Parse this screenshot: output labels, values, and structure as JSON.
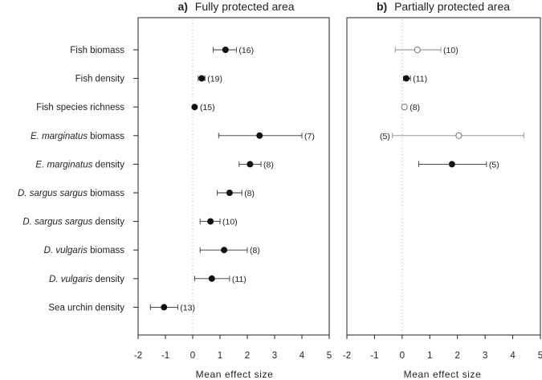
{
  "chart_data": [
    {
      "type": "scatter",
      "panel_letter": "a)",
      "title": "Fully protected area",
      "xlabel": "Mean effect size",
      "xlim": [
        -2,
        5
      ],
      "xticks": [
        "-2",
        "-1",
        "0",
        "1",
        "2",
        "3",
        "4",
        "5"
      ],
      "zero_reference_line": "dotted",
      "marker_fill": "#111111",
      "categories": [
        [
          "Fish biomass"
        ],
        [
          "Fish density"
        ],
        [
          "Fish species richness"
        ],
        [
          "E. marginatus",
          " biomass"
        ],
        [
          "E. marginatus",
          " density"
        ],
        [
          "D. sargus sargus",
          " biomass"
        ],
        [
          "D. sargus sargus",
          " density"
        ],
        [
          "D. vulgaris",
          " biomass"
        ],
        [
          "D. vulgaris",
          " density"
        ],
        [
          "Sea urchin density"
        ]
      ],
      "points": [
        {
          "x": 1.2,
          "lo": 0.75,
          "hi": 1.6,
          "n": "(16)"
        },
        {
          "x": 0.33,
          "lo": 0.2,
          "hi": 0.45,
          "n": "(19)"
        },
        {
          "x": 0.07,
          "lo": 0.07,
          "hi": 0.07,
          "n": "(15)"
        },
        {
          "x": 2.45,
          "lo": 0.95,
          "hi": 4.0,
          "n": "(7)"
        },
        {
          "x": 2.1,
          "lo": 1.7,
          "hi": 2.5,
          "n": "(8)"
        },
        {
          "x": 1.35,
          "lo": 0.9,
          "hi": 1.8,
          "n": "(8)"
        },
        {
          "x": 0.65,
          "lo": 0.27,
          "hi": 1.0,
          "n": "(10)"
        },
        {
          "x": 1.15,
          "lo": 0.27,
          "hi": 2.0,
          "n": "(8)"
        },
        {
          "x": 0.7,
          "lo": 0.07,
          "hi": 1.35,
          "n": "(11)"
        },
        {
          "x": -1.05,
          "lo": -1.55,
          "hi": -0.55,
          "n": "(13)"
        }
      ]
    },
    {
      "type": "scatter",
      "panel_letter": "b)",
      "title": "Partially protected area",
      "xlabel": "Mean effect size",
      "xlim": [
        -2,
        5
      ],
      "xticks": [
        "-2",
        "-1",
        "0",
        "1",
        "2",
        "3",
        "4",
        "5"
      ],
      "zero_reference_line": "dotted",
      "points": [
        {
          "row": 0,
          "x": 0.55,
          "lo": -0.25,
          "hi": 1.4,
          "n": "(10)",
          "filled": false
        },
        {
          "row": 1,
          "x": 0.15,
          "lo": 0.05,
          "hi": 0.3,
          "n": "(11)",
          "filled": true
        },
        {
          "row": 2,
          "x": 0.08,
          "lo": 0.08,
          "hi": 0.08,
          "n": "(8)",
          "filled": false
        },
        {
          "row": 3,
          "x": 2.05,
          "lo": -0.35,
          "hi": 4.4,
          "n": "(5)",
          "filled": false,
          "label_side": "left"
        },
        {
          "row": 4,
          "x": 1.8,
          "lo": 0.6,
          "hi": 3.05,
          "n": "(5)",
          "filled": true
        }
      ]
    }
  ]
}
